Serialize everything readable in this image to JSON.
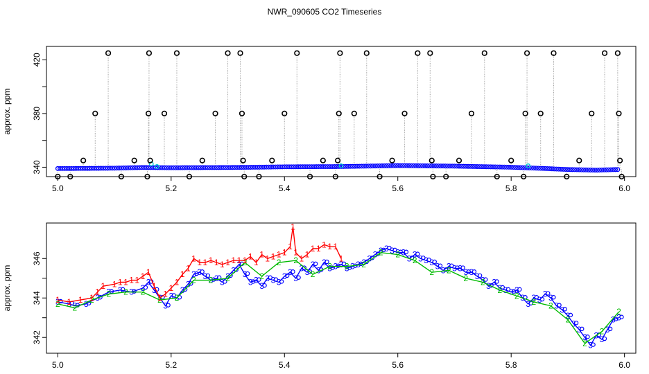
{
  "figure": {
    "title": "NWR_090605  CO2 Timeseries",
    "colors": {
      "points": "#0000ff",
      "special": "#00cccc",
      "spike": "#000000",
      "line1": "#ff0000",
      "line2": "#00bb00",
      "line3": "#0000ff",
      "guide": "#999999"
    }
  },
  "chart_data": [
    {
      "type": "scatter",
      "ylabel": "approx. ppm",
      "xlim": [
        4.98,
        6.02
      ],
      "ylim": [
        333,
        430
      ],
      "xticks": [
        {
          "v": 5.0,
          "label": "5.0"
        },
        {
          "v": 5.2,
          "label": "5.2"
        },
        {
          "v": 5.4,
          "label": "5.4"
        },
        {
          "v": 5.6,
          "label": "5.6"
        },
        {
          "v": 5.8,
          "label": "5.8"
        },
        {
          "v": 6.0,
          "label": "6.0"
        }
      ],
      "yticks": [
        {
          "v": 340,
          "label": "340"
        },
        {
          "v": 380,
          "label": "380"
        },
        {
          "v": 420,
          "label": "420"
        }
      ],
      "yminor": [
        360,
        400
      ],
      "baseline": [
        [
          5.0,
          339.0
        ],
        [
          5.05,
          339.1
        ],
        [
          5.1,
          339.3
        ],
        [
          5.15,
          339.8
        ],
        [
          5.2,
          339.6
        ],
        [
          5.3,
          339.8
        ],
        [
          5.35,
          340.0
        ],
        [
          5.4,
          340.3
        ],
        [
          5.5,
          340.5
        ],
        [
          5.6,
          341.2
        ],
        [
          5.7,
          340.8
        ],
        [
          5.8,
          340.0
        ],
        [
          5.85,
          339.2
        ],
        [
          5.9,
          338.3
        ],
        [
          5.95,
          337.8
        ],
        [
          5.99,
          338.3
        ]
      ],
      "cyan_points": [
        [
          5.165,
          342.5
        ],
        [
          5.175,
          340.5
        ],
        [
          5.5,
          341.0
        ],
        [
          5.83,
          341.0
        ]
      ],
      "spikes": [
        {
          "x": 5.0,
          "y": 333
        },
        {
          "x": 5.022,
          "y": 333
        },
        {
          "x": 5.045,
          "y": 345
        },
        {
          "x": 5.066,
          "y": 380
        },
        {
          "x": 5.089,
          "y": 425
        },
        {
          "x": 5.112,
          "y": 333
        },
        {
          "x": 5.135,
          "y": 345
        },
        {
          "x": 5.158,
          "y": 333
        },
        {
          "x": 5.16,
          "y": 380
        },
        {
          "x": 5.161,
          "y": 425
        },
        {
          "x": 5.163,
          "y": 345
        },
        {
          "x": 5.188,
          "y": 380
        },
        {
          "x": 5.21,
          "y": 425
        },
        {
          "x": 5.232,
          "y": 333
        },
        {
          "x": 5.255,
          "y": 345
        },
        {
          "x": 5.278,
          "y": 380
        },
        {
          "x": 5.3,
          "y": 425
        },
        {
          "x": 5.322,
          "y": 425
        },
        {
          "x": 5.325,
          "y": 380
        },
        {
          "x": 5.327,
          "y": 345
        },
        {
          "x": 5.329,
          "y": 333
        },
        {
          "x": 5.355,
          "y": 333
        },
        {
          "x": 5.378,
          "y": 345
        },
        {
          "x": 5.4,
          "y": 380
        },
        {
          "x": 5.422,
          "y": 425
        },
        {
          "x": 5.445,
          "y": 333
        },
        {
          "x": 5.468,
          "y": 345
        },
        {
          "x": 5.49,
          "y": 333
        },
        {
          "x": 5.494,
          "y": 345
        },
        {
          "x": 5.496,
          "y": 380
        },
        {
          "x": 5.498,
          "y": 425
        },
        {
          "x": 5.523,
          "y": 380
        },
        {
          "x": 5.545,
          "y": 425
        },
        {
          "x": 5.568,
          "y": 333
        },
        {
          "x": 5.59,
          "y": 345
        },
        {
          "x": 5.612,
          "y": 380
        },
        {
          "x": 5.635,
          "y": 425
        },
        {
          "x": 5.657,
          "y": 425
        },
        {
          "x": 5.66,
          "y": 345
        },
        {
          "x": 5.662,
          "y": 333
        },
        {
          "x": 5.685,
          "y": 333
        },
        {
          "x": 5.708,
          "y": 345
        },
        {
          "x": 5.73,
          "y": 380
        },
        {
          "x": 5.753,
          "y": 425
        },
        {
          "x": 5.775,
          "y": 333
        },
        {
          "x": 5.8,
          "y": 345
        },
        {
          "x": 5.822,
          "y": 333
        },
        {
          "x": 5.825,
          "y": 380
        },
        {
          "x": 5.828,
          "y": 425
        },
        {
          "x": 5.852,
          "y": 380
        },
        {
          "x": 5.875,
          "y": 425
        },
        {
          "x": 5.898,
          "y": 333
        },
        {
          "x": 5.92,
          "y": 345
        },
        {
          "x": 5.942,
          "y": 380
        },
        {
          "x": 5.965,
          "y": 425
        },
        {
          "x": 5.988,
          "y": 425
        },
        {
          "x": 5.99,
          "y": 380
        },
        {
          "x": 5.992,
          "y": 345
        },
        {
          "x": 5.995,
          "y": 333
        }
      ]
    },
    {
      "type": "line",
      "ylabel": "approx. ppm",
      "xlim": [
        4.98,
        6.02
      ],
      "ylim": [
        341.2,
        347.8
      ],
      "xticks": [
        {
          "v": 5.0,
          "label": "5.0"
        },
        {
          "v": 5.2,
          "label": "5.2"
        },
        {
          "v": 5.4,
          "label": "5.4"
        },
        {
          "v": 5.6,
          "label": "5.6"
        },
        {
          "v": 5.8,
          "label": "5.8"
        },
        {
          "v": 6.0,
          "label": "6.0"
        }
      ],
      "yticks": [
        {
          "v": 342,
          "label": "342"
        },
        {
          "v": 344,
          "label": "344"
        },
        {
          "v": 346,
          "label": "346"
        }
      ],
      "yminor": [
        343,
        345
      ],
      "series": [
        {
          "label": "3",
          "color": "#0000ff",
          "x": [
            5.0,
            5.02,
            5.03,
            5.05,
            5.07,
            5.09,
            5.11,
            5.13,
            5.15,
            5.16,
            5.17,
            5.18,
            5.19,
            5.2,
            5.21,
            5.22,
            5.23,
            5.24,
            5.25,
            5.26,
            5.27,
            5.28,
            5.29,
            5.3,
            5.31,
            5.32,
            5.33,
            5.34,
            5.35,
            5.36,
            5.37,
            5.38,
            5.39,
            5.4,
            5.41,
            5.42,
            5.43,
            5.44,
            5.45,
            5.46,
            5.47,
            5.48,
            5.49,
            5.5,
            5.51,
            5.52,
            5.53,
            5.54,
            5.55,
            5.56,
            5.57,
            5.58,
            5.59,
            5.6,
            5.61,
            5.62,
            5.63,
            5.64,
            5.65,
            5.66,
            5.67,
            5.68,
            5.69,
            5.7,
            5.71,
            5.72,
            5.73,
            5.74,
            5.75,
            5.76,
            5.77,
            5.78,
            5.79,
            5.8,
            5.81,
            5.82,
            5.83,
            5.84,
            5.85,
            5.86,
            5.87,
            5.88,
            5.89,
            5.9,
            5.91,
            5.92,
            5.93,
            5.94,
            5.95,
            5.96,
            5.97,
            5.98,
            5.99
          ],
          "y": [
            343.8,
            343.7,
            343.6,
            343.7,
            344.0,
            344.3,
            344.4,
            344.3,
            344.5,
            344.8,
            344.4,
            344.0,
            343.6,
            344.1,
            344.0,
            344.4,
            344.7,
            345.2,
            345.3,
            345.1,
            344.9,
            345.0,
            344.8,
            345.1,
            345.4,
            345.7,
            345.2,
            344.8,
            344.9,
            344.6,
            345.0,
            344.9,
            344.8,
            345.1,
            345.3,
            345.0,
            345.5,
            345.3,
            345.7,
            345.4,
            345.8,
            345.5,
            345.6,
            345.7,
            345.5,
            345.6,
            345.7,
            345.8,
            346.0,
            346.2,
            346.4,
            346.5,
            346.4,
            346.3,
            346.3,
            346.0,
            346.2,
            346.0,
            345.9,
            345.8,
            345.6,
            345.4,
            345.6,
            345.5,
            345.5,
            345.3,
            345.3,
            345.1,
            344.9,
            344.6,
            344.8,
            344.5,
            344.4,
            344.3,
            344.4,
            344.0,
            343.7,
            344.0,
            343.9,
            344.2,
            344.0,
            343.6,
            343.4,
            343.1,
            342.7,
            342.4,
            342.0,
            341.6,
            342.1,
            341.9,
            342.4,
            342.9,
            343.0
          ]
        },
        {
          "label": "2",
          "color": "#00bb00",
          "x": [
            5.0,
            5.03,
            5.06,
            5.09,
            5.12,
            5.15,
            5.18,
            5.21,
            5.24,
            5.27,
            5.3,
            5.33,
            5.36,
            5.39,
            5.42,
            5.45,
            5.48,
            5.51,
            5.54,
            5.57,
            5.6,
            5.63,
            5.66,
            5.69,
            5.72,
            5.75,
            5.78,
            5.81,
            5.84,
            5.87,
            5.9,
            5.93,
            5.96,
            5.99
          ],
          "y": [
            343.7,
            343.5,
            343.9,
            344.2,
            344.3,
            344.3,
            343.9,
            344.0,
            344.9,
            344.9,
            345.0,
            345.8,
            345.1,
            345.8,
            345.9,
            345.2,
            345.6,
            345.6,
            345.7,
            346.3,
            346.2,
            345.9,
            345.3,
            345.4,
            345.0,
            344.8,
            344.4,
            344.1,
            343.8,
            343.6,
            342.9,
            341.7,
            342.3,
            343.3
          ]
        },
        {
          "label": "1",
          "color": "#ff0000",
          "x": [
            5.0,
            5.02,
            5.04,
            5.06,
            5.07,
            5.08,
            5.1,
            5.11,
            5.12,
            5.13,
            5.14,
            5.15,
            5.16,
            5.17,
            5.18,
            5.19,
            5.2,
            5.21,
            5.22,
            5.23,
            5.24,
            5.25,
            5.26,
            5.27,
            5.28,
            5.29,
            5.3,
            5.31,
            5.32,
            5.33,
            5.34,
            5.35,
            5.36,
            5.37,
            5.38,
            5.39,
            5.4,
            5.41,
            5.415,
            5.42,
            5.43,
            5.44,
            5.45,
            5.46,
            5.47,
            5.48,
            5.49,
            5.5
          ],
          "y": [
            343.9,
            343.8,
            343.9,
            344.0,
            344.3,
            344.6,
            344.7,
            344.8,
            344.8,
            344.9,
            344.9,
            345.1,
            345.3,
            344.6,
            344.0,
            344.2,
            344.5,
            344.8,
            345.2,
            345.5,
            346.0,
            345.8,
            345.8,
            345.9,
            345.8,
            345.7,
            345.8,
            345.9,
            345.9,
            345.9,
            346.1,
            345.8,
            346.2,
            346.0,
            346.1,
            346.2,
            346.3,
            346.6,
            347.6,
            346.3,
            346.0,
            346.2,
            346.5,
            346.5,
            346.7,
            346.6,
            346.6,
            346.0
          ]
        }
      ]
    }
  ]
}
